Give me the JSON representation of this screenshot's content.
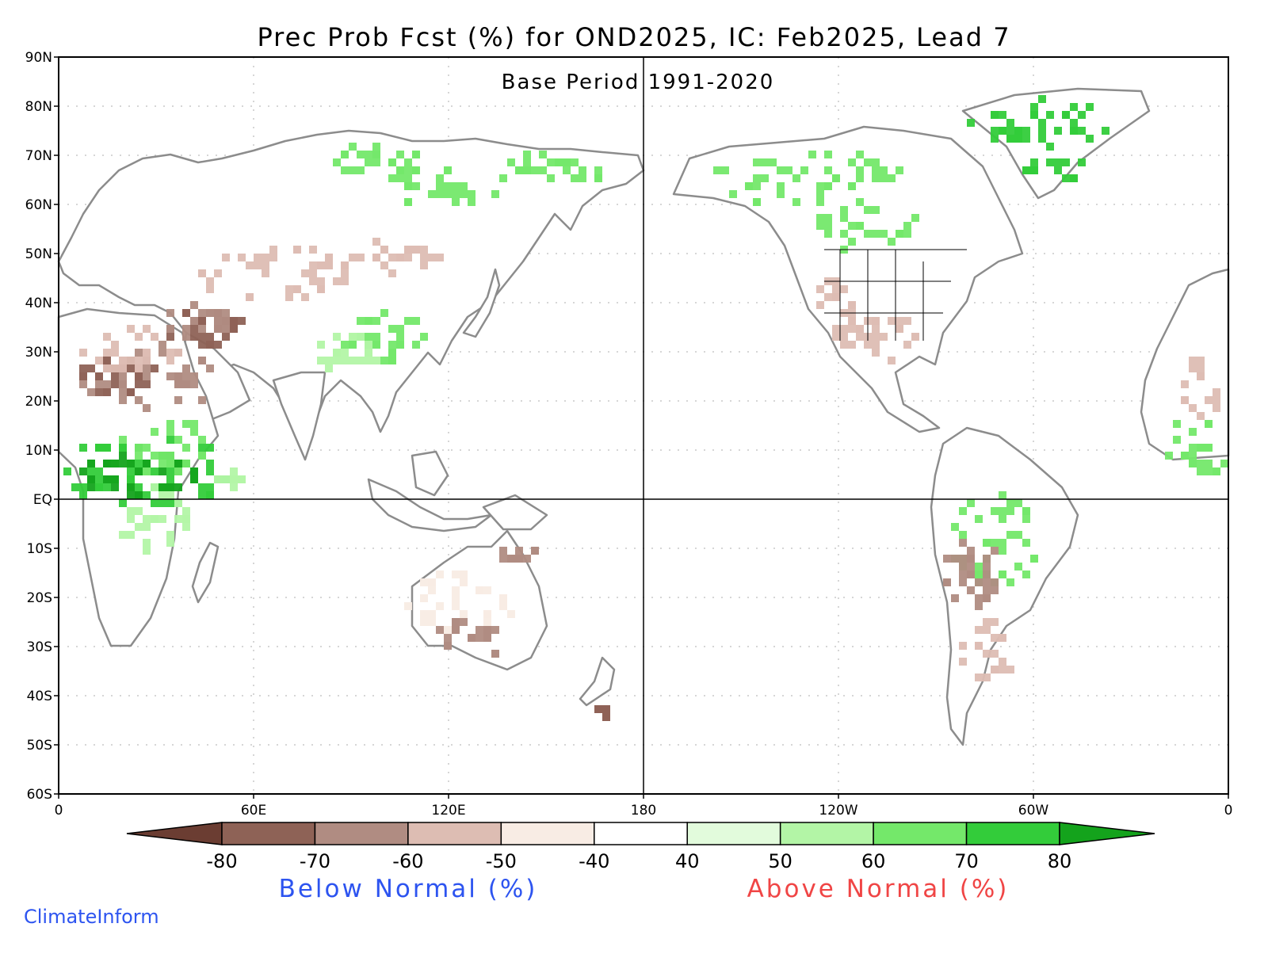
{
  "title": "Prec Prob Fcst (%) for OND2025, IC: Feb2025, Lead 7",
  "subtitle": "Base Period 1991-2020",
  "lat_labels": [
    "90N",
    "80N",
    "70N",
    "60N",
    "50N",
    "40N",
    "30N",
    "20N",
    "10N",
    "EQ",
    "10S",
    "20S",
    "30S",
    "40S",
    "50S",
    "60S"
  ],
  "lon_labels": [
    "0",
    "60E",
    "120E",
    "180",
    "120W",
    "60W",
    "0"
  ],
  "colorbar": {
    "labels": [
      "-80",
      "-70",
      "-60",
      "-50",
      "-40",
      "40",
      "50",
      "60",
      "70",
      "80"
    ],
    "colors": [
      "#6b3d32",
      "#8e6256",
      "#b08c82",
      "#ddbdb3",
      "#f8ece4",
      "#ffffff",
      "#e2fbdc",
      "#b3f5a6",
      "#74e86a",
      "#33cc3a",
      "#14a31c"
    ],
    "below_label": "Below Normal (%)",
    "above_label": "Above Normal (%)"
  },
  "credit": "ClimateInform",
  "colors": {
    "coastline": "#8c8c8c",
    "below_text": "#2d54f0",
    "above_text": "#f04545",
    "credit_text": "#2d54f0"
  }
}
